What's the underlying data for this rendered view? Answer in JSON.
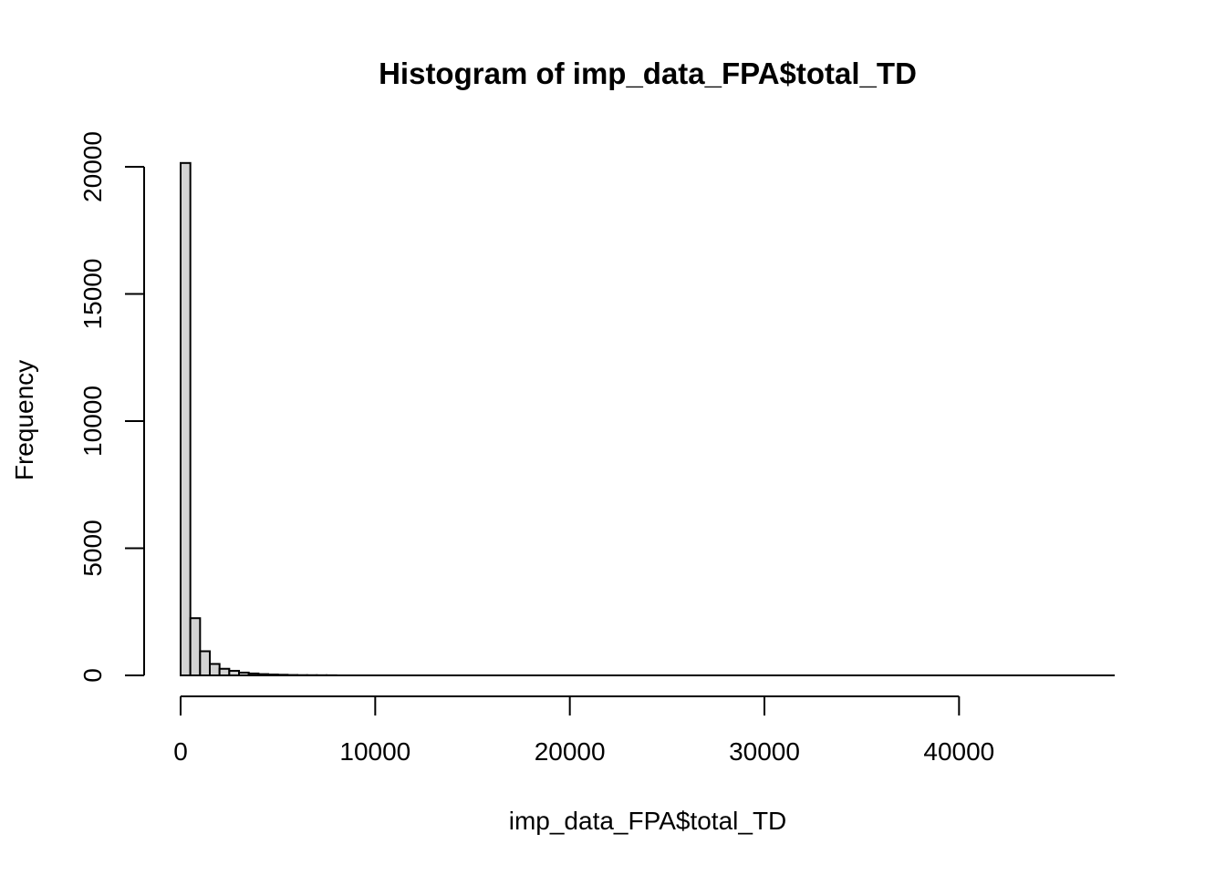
{
  "chart_data": {
    "type": "bar",
    "title": "Histogram of imp_data_FPA$total_TD",
    "xlabel": "imp_data_FPA$total_TD",
    "ylabel": "Frequency",
    "xlim": [
      0,
      48000
    ],
    "ylim": [
      0,
      20000
    ],
    "x_ticks": [
      0,
      10000,
      20000,
      30000,
      40000
    ],
    "x_tick_labels": [
      "0",
      "10000",
      "20000",
      "30000",
      "40000"
    ],
    "y_ticks": [
      0,
      5000,
      10000,
      15000,
      20000
    ],
    "y_tick_labels": [
      "0",
      "5000",
      "10000",
      "15000",
      "20000"
    ],
    "bin_width": 500,
    "bin_range": [
      0,
      48000
    ],
    "bins": [
      {
        "start": 0,
        "end": 500,
        "value": 20150
      },
      {
        "start": 500,
        "end": 1000,
        "value": 2250
      },
      {
        "start": 1000,
        "end": 1500,
        "value": 950
      },
      {
        "start": 1500,
        "end": 2000,
        "value": 450
      },
      {
        "start": 2000,
        "end": 2500,
        "value": 260
      },
      {
        "start": 2500,
        "end": 3000,
        "value": 180
      },
      {
        "start": 3000,
        "end": 3500,
        "value": 110
      },
      {
        "start": 3500,
        "end": 4000,
        "value": 75
      },
      {
        "start": 4000,
        "end": 4500,
        "value": 50
      },
      {
        "start": 4500,
        "end": 5000,
        "value": 35
      },
      {
        "start": 5000,
        "end": 5500,
        "value": 25
      },
      {
        "start": 5500,
        "end": 6000,
        "value": 15
      },
      {
        "start": 6000,
        "end": 6500,
        "value": 10
      },
      {
        "start": 6500,
        "end": 7000,
        "value": 8
      },
      {
        "start": 7000,
        "end": 7500,
        "value": 6
      },
      {
        "start": 7500,
        "end": 8000,
        "value": 5
      }
    ],
    "bar_fill": "#d3d3d3",
    "bar_stroke": "#000000",
    "grid": false
  }
}
